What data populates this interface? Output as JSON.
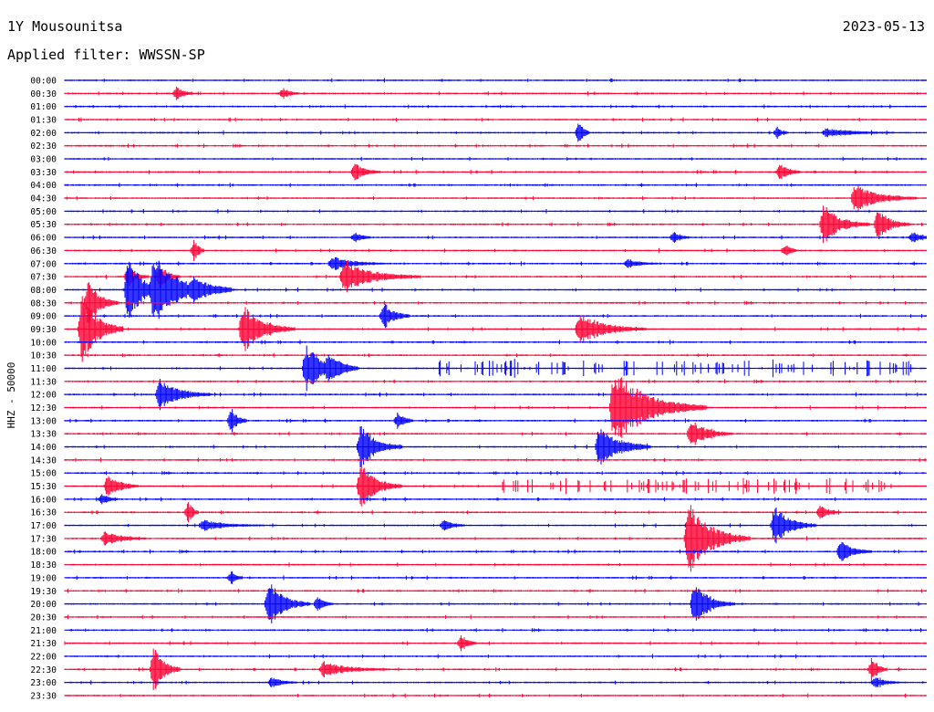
{
  "header": {
    "station": "1Y Mousounitsa",
    "date": "2023-05-13",
    "filter": "Applied filter: WWSSN-SP"
  },
  "colors": {
    "blue": "#0000ff",
    "red": "#ff0033"
  },
  "chart_data": {
    "type": "helicorder",
    "ylabel": "HHZ - 50000",
    "row_labels": [
      "00:00",
      "00:30",
      "01:00",
      "01:30",
      "02:00",
      "02:30",
      "03:00",
      "03:30",
      "04:00",
      "04:30",
      "05:00",
      "05:30",
      "06:00",
      "06:30",
      "07:00",
      "07:30",
      "08:00",
      "08:30",
      "09:00",
      "09:30",
      "10:00",
      "10:30",
      "11:00",
      "11:30",
      "12:00",
      "12:30",
      "13:00",
      "13:30",
      "14:00",
      "14:30",
      "15:00",
      "15:30",
      "16:00",
      "16:30",
      "17:00",
      "17:30",
      "18:00",
      "18:30",
      "19:00",
      "19:30",
      "20:00",
      "20:30",
      "21:00",
      "21:30",
      "22:00",
      "22:30",
      "23:00",
      "23:30"
    ],
    "x_minutes_per_row": 30,
    "events": [
      {
        "row": "00:30",
        "minute": 3.9,
        "amplitude": 0.4,
        "duration": 0.3
      },
      {
        "row": "00:30",
        "minute": 7.6,
        "amplitude": 0.3,
        "duration": 0.3
      },
      {
        "row": "02:00",
        "minute": 17.9,
        "amplitude": 0.6,
        "duration": 0.2
      },
      {
        "row": "02:00",
        "minute": 24.8,
        "amplitude": 0.3,
        "duration": 0.2
      },
      {
        "row": "02:00",
        "minute": 26.5,
        "amplitude": 0.25,
        "duration": 1.3
      },
      {
        "row": "03:30",
        "minute": 10.1,
        "amplitude": 0.5,
        "duration": 0.5
      },
      {
        "row": "03:30",
        "minute": 24.9,
        "amplitude": 0.5,
        "duration": 0.4
      },
      {
        "row": "04:30",
        "minute": 27.5,
        "amplitude": 0.8,
        "duration": 1.2
      },
      {
        "row": "05:30",
        "minute": 26.4,
        "amplitude": 1.1,
        "duration": 0.9
      },
      {
        "row": "05:30",
        "minute": 28.3,
        "amplitude": 0.9,
        "duration": 0.6
      },
      {
        "row": "06:00",
        "minute": 10.1,
        "amplitude": 0.3,
        "duration": 0.3
      },
      {
        "row": "06:00",
        "minute": 21.2,
        "amplitude": 0.3,
        "duration": 0.3
      },
      {
        "row": "06:00",
        "minute": 29.5,
        "amplitude": 0.3,
        "duration": 0.4
      },
      {
        "row": "06:30",
        "minute": 4.5,
        "amplitude": 0.6,
        "duration": 0.2
      },
      {
        "row": "06:30",
        "minute": 25.1,
        "amplitude": 0.4,
        "duration": 0.2
      },
      {
        "row": "07:00",
        "minute": 9.3,
        "amplitude": 0.4,
        "duration": 1.0
      },
      {
        "row": "07:00",
        "minute": 19.6,
        "amplitude": 0.25,
        "duration": 0.6
      },
      {
        "row": "07:30",
        "minute": 2.2,
        "amplitude": 0.6,
        "duration": 0.4
      },
      {
        "row": "07:30",
        "minute": 3.3,
        "amplitude": 0.7,
        "duration": 0.4
      },
      {
        "row": "07:30",
        "minute": 9.7,
        "amplitude": 0.9,
        "duration": 1.5
      },
      {
        "row": "08:00",
        "minute": 2.2,
        "amplitude": 1.8,
        "duration": 0.8
      },
      {
        "row": "08:00",
        "minute": 3.1,
        "amplitude": 1.8,
        "duration": 1.5
      },
      {
        "row": "08:00",
        "minute": 4.5,
        "amplitude": 0.4,
        "duration": 0.8
      },
      {
        "row": "08:30",
        "minute": 0.8,
        "amplitude": 1.3,
        "duration": 0.6
      },
      {
        "row": "09:00",
        "minute": 11.1,
        "amplitude": 0.8,
        "duration": 0.5
      },
      {
        "row": "09:30",
        "minute": 0.6,
        "amplitude": 2.0,
        "duration": 0.8
      },
      {
        "row": "09:30",
        "minute": 6.2,
        "amplitude": 1.4,
        "duration": 1.0
      },
      {
        "row": "09:30",
        "minute": 17.9,
        "amplitude": 0.9,
        "duration": 1.3
      },
      {
        "row": "11:00",
        "minute": 8.4,
        "amplitude": 1.3,
        "duration": 1.0
      },
      {
        "row": "11:00",
        "minute": 9.2,
        "amplitude": 0.5,
        "duration": 0.6
      },
      {
        "row": "12:00",
        "minute": 3.3,
        "amplitude": 0.9,
        "duration": 1.0
      },
      {
        "row": "12:30",
        "minute": 19.1,
        "amplitude": 2.2,
        "duration": 1.8
      },
      {
        "row": "13:00",
        "minute": 5.8,
        "amplitude": 0.7,
        "duration": 0.3
      },
      {
        "row": "13:00",
        "minute": 11.6,
        "amplitude": 0.5,
        "duration": 0.3
      },
      {
        "row": "13:30",
        "minute": 21.8,
        "amplitude": 0.8,
        "duration": 0.8
      },
      {
        "row": "14:00",
        "minute": 10.3,
        "amplitude": 1.3,
        "duration": 0.8
      },
      {
        "row": "14:00",
        "minute": 18.6,
        "amplitude": 1.3,
        "duration": 1.0
      },
      {
        "row": "15:30",
        "minute": 1.5,
        "amplitude": 0.7,
        "duration": 0.6
      },
      {
        "row": "15:30",
        "minute": 10.3,
        "amplitude": 1.3,
        "duration": 0.8
      },
      {
        "row": "16:00",
        "minute": 1.3,
        "amplitude": 0.3,
        "duration": 0.3
      },
      {
        "row": "16:30",
        "minute": 4.3,
        "amplitude": 0.6,
        "duration": 0.2
      },
      {
        "row": "16:30",
        "minute": 26.3,
        "amplitude": 0.4,
        "duration": 0.4
      },
      {
        "row": "17:00",
        "minute": 4.8,
        "amplitude": 0.3,
        "duration": 1.2
      },
      {
        "row": "17:00",
        "minute": 13.2,
        "amplitude": 0.4,
        "duration": 0.4
      },
      {
        "row": "17:00",
        "minute": 24.7,
        "amplitude": 1.1,
        "duration": 0.8
      },
      {
        "row": "17:30",
        "minute": 1.4,
        "amplitude": 0.4,
        "duration": 0.8
      },
      {
        "row": "17:30",
        "minute": 21.7,
        "amplitude": 2.1,
        "duration": 1.2
      },
      {
        "row": "18:00",
        "minute": 27.0,
        "amplitude": 0.6,
        "duration": 0.6
      },
      {
        "row": "19:00",
        "minute": 5.8,
        "amplitude": 0.4,
        "duration": 0.2
      },
      {
        "row": "20:00",
        "minute": 7.1,
        "amplitude": 1.3,
        "duration": 0.8
      },
      {
        "row": "20:00",
        "minute": 8.8,
        "amplitude": 0.4,
        "duration": 0.3
      },
      {
        "row": "20:00",
        "minute": 21.9,
        "amplitude": 1.2,
        "duration": 0.8
      },
      {
        "row": "21:30",
        "minute": 13.8,
        "amplitude": 0.5,
        "duration": 0.3
      },
      {
        "row": "22:30",
        "minute": 3.1,
        "amplitude": 1.3,
        "duration": 0.5
      },
      {
        "row": "22:30",
        "minute": 9.0,
        "amplitude": 0.4,
        "duration": 1.3
      },
      {
        "row": "22:30",
        "minute": 28.1,
        "amplitude": 0.7,
        "duration": 0.3
      },
      {
        "row": "23:00",
        "minute": 7.2,
        "amplitude": 0.3,
        "duration": 0.5
      },
      {
        "row": "23:00",
        "minute": 28.2,
        "amplitude": 0.3,
        "duration": 0.5
      }
    ],
    "tremor_bursts": [
      {
        "row": "11:00",
        "from": 12.4,
        "to": 29.5
      },
      {
        "row": "15:30",
        "from": 15.2,
        "to": 28.6
      }
    ]
  }
}
